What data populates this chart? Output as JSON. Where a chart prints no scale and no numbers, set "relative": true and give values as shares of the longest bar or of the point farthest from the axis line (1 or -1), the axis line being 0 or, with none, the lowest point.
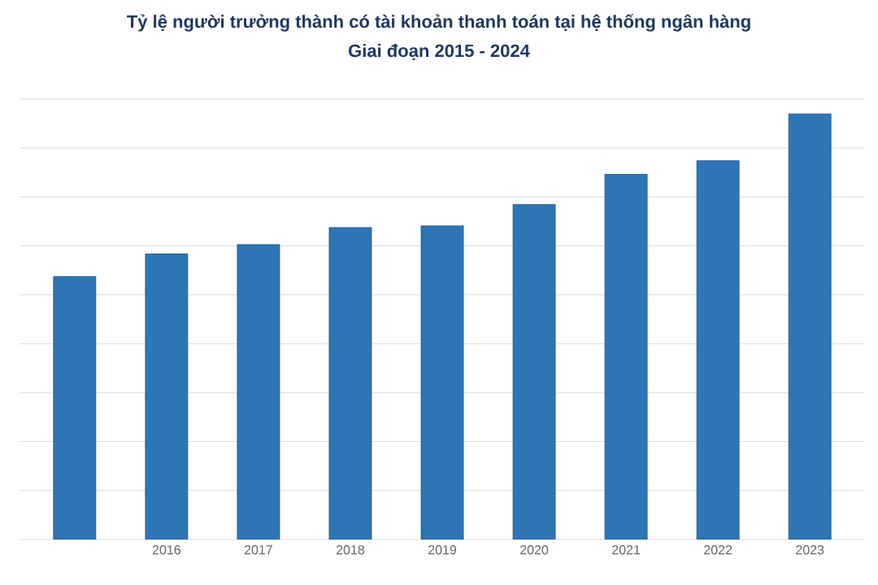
{
  "chart_data": {
    "type": "bar",
    "title": "Tỷ lệ người trưởng thành có tài khoản thanh toán tại hệ thống ngân hàng",
    "subtitle": "Giai đoạn 2015 - 2024",
    "categories": [
      null,
      "2016",
      "2017",
      "2018",
      "2019",
      "2020",
      "2021",
      "2022",
      "2023"
    ],
    "values": [
      0.618,
      0.671,
      0.693,
      0.733,
      0.737,
      0.787,
      0.858,
      0.89,
      1
    ],
    "color": "#2e75b6",
    "relative": true,
    "grid": "y"
  }
}
